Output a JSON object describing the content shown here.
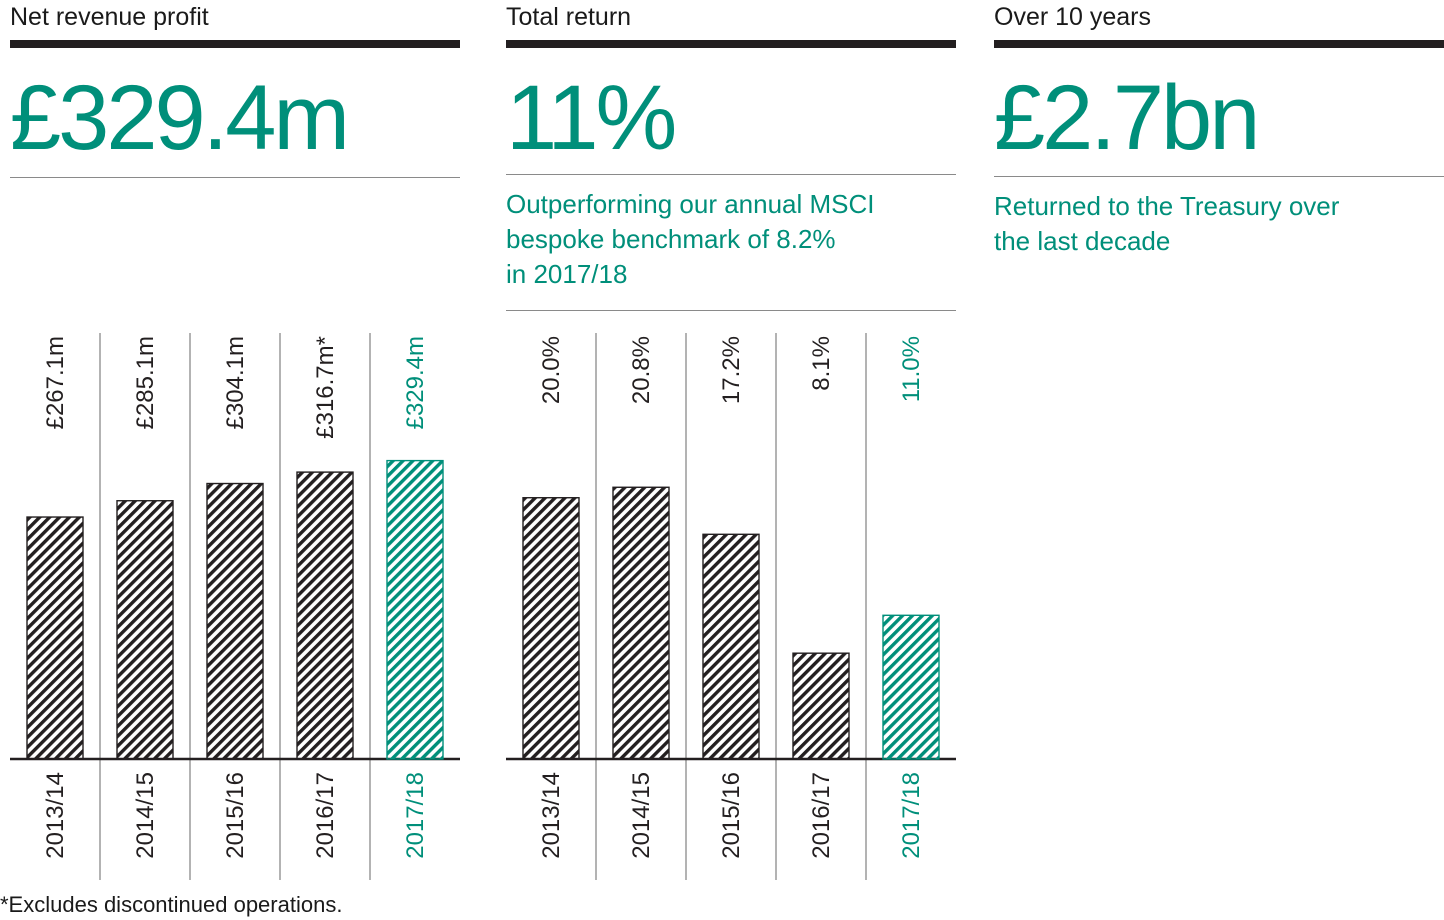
{
  "colors": {
    "accent": "#008f7a",
    "dark": "#231f20",
    "divider": "#8a8a8a"
  },
  "panels": [
    {
      "heading": "Net revenue profit",
      "headline": "£329.4m",
      "description": []
    },
    {
      "heading": "Total return",
      "headline": "11%",
      "description": [
        "Outperforming our annual MSCI",
        "bespoke benchmark of 8.2%",
        "in 2017/18"
      ]
    },
    {
      "heading": "Over 10 years",
      "headline": "£2.7bn",
      "description": [
        "Returned to the Treasury over",
        "the last decade"
      ]
    }
  ],
  "footnote": "*Excludes discontinued operations.",
  "chart_data": [
    {
      "type": "bar",
      "categories": [
        "2013/14",
        "2014/15",
        "2015/16",
        "2016/17",
        "2017/18"
      ],
      "values": [
        267.1,
        285.1,
        304.1,
        316.7,
        329.4
      ],
      "labels": [
        "£267.1m",
        "£285.1m",
        "£304.1m",
        "£316.7m*",
        "£329.4m"
      ],
      "highlight_index": 4,
      "ylim": [
        0,
        340
      ],
      "grid": false
    },
    {
      "type": "bar",
      "categories": [
        "2013/14",
        "2014/15",
        "2015/16",
        "2016/17",
        "2017/18"
      ],
      "values": [
        20.0,
        20.8,
        17.2,
        8.1,
        11.0
      ],
      "labels": [
        "20.0%",
        "20.8%",
        "17.2%",
        "8.1%",
        "11.0%"
      ],
      "highlight_index": 4,
      "ylim": [
        0,
        23.5
      ],
      "grid": false
    }
  ]
}
